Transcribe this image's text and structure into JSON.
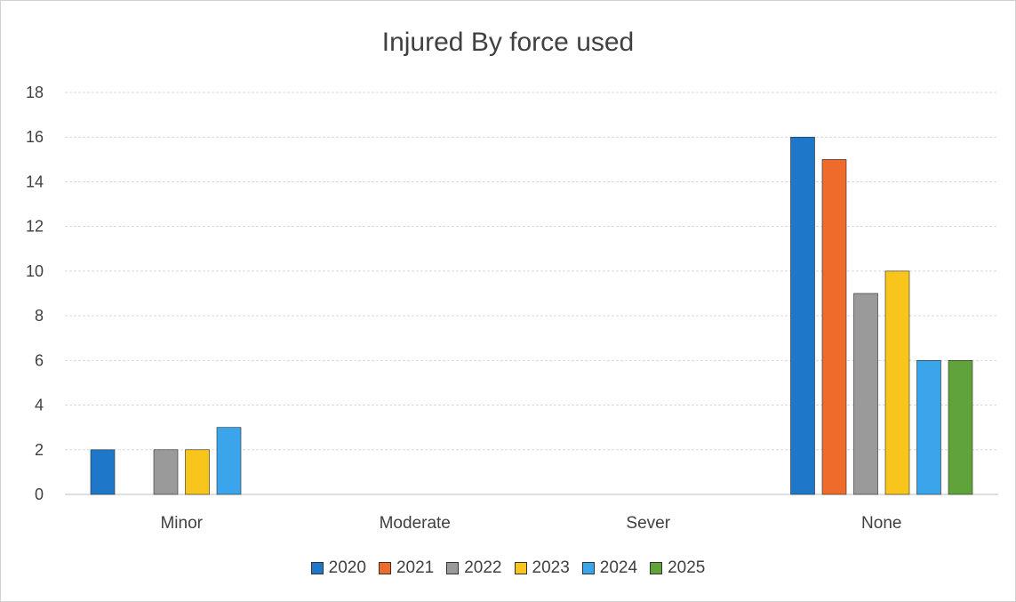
{
  "chart_data": {
    "type": "bar",
    "title": "Injured By force used",
    "categories": [
      "Minor",
      "Moderate",
      "Sever",
      "None"
    ],
    "series": [
      {
        "name": "2020",
        "color": "#1f77c9",
        "values": [
          2,
          0,
          0,
          16
        ]
      },
      {
        "name": "2021",
        "color": "#ee6b2c",
        "values": [
          0,
          0,
          0,
          15
        ]
      },
      {
        "name": "2022",
        "color": "#9a9a9a",
        "values": [
          2,
          0,
          0,
          9
        ]
      },
      {
        "name": "2023",
        "color": "#f7c51b",
        "values": [
          2,
          0,
          0,
          10
        ]
      },
      {
        "name": "2024",
        "color": "#3aa5ea",
        "values": [
          3,
          0,
          0,
          6
        ]
      },
      {
        "name": "2025",
        "color": "#5fa33a",
        "values": [
          0,
          0,
          0,
          6
        ]
      }
    ],
    "ylim": [
      0,
      18
    ],
    "yticks": [
      0,
      2,
      4,
      6,
      8,
      10,
      12,
      14,
      16,
      18
    ],
    "grid": true,
    "legend_position": "bottom"
  }
}
